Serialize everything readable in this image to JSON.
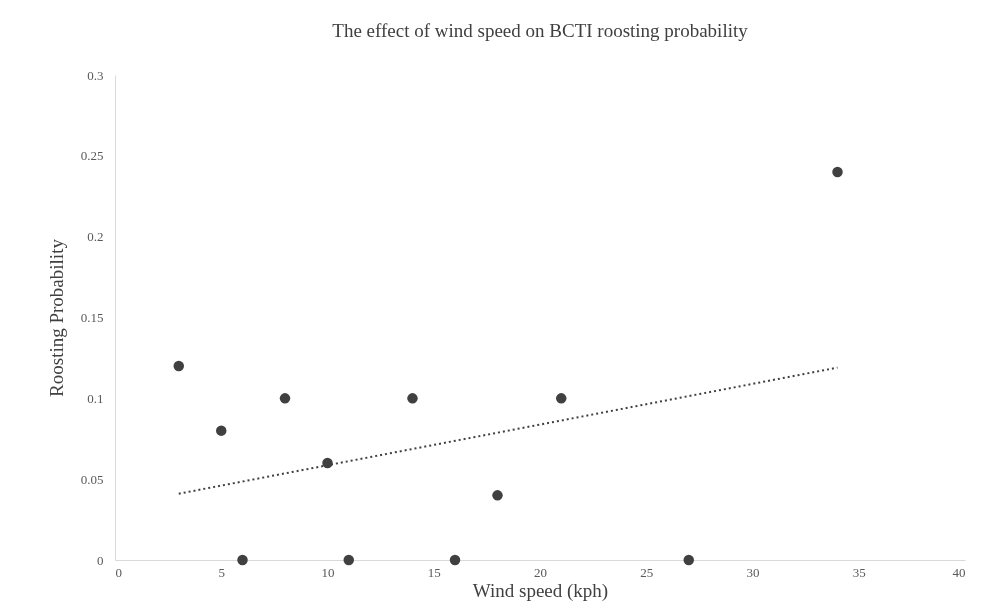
{
  "chart_data": {
    "type": "scatter",
    "title": "The effect of wind speed on BCTI roosting probability",
    "xlabel": "Wind speed (kph)",
    "ylabel": "Roosting Probability",
    "xlim": [
      0,
      40
    ],
    "xticks": [
      0,
      5,
      10,
      15,
      20,
      25,
      30,
      35,
      40
    ],
    "ylim": [
      0,
      0.3
    ],
    "yticks": [
      0,
      0.05,
      0.1,
      0.15,
      0.2,
      0.25,
      0.3
    ],
    "marker": "circle",
    "series": [
      {
        "color": "#404040",
        "x": [
          3,
          5,
          6,
          8,
          10,
          11,
          14,
          16,
          18,
          21,
          27,
          34
        ],
        "values": [
          0.12,
          0.08,
          0,
          0.1,
          0.06,
          0,
          0.1,
          0,
          0.04,
          0.1,
          0,
          0.24
        ]
      },
      {
        "type": "line",
        "color": "#404040",
        "line_style": "dotted",
        "marker": "none",
        "x": [
          3,
          34
        ],
        "values": [
          0.041,
          0.119
        ]
      }
    ]
  }
}
